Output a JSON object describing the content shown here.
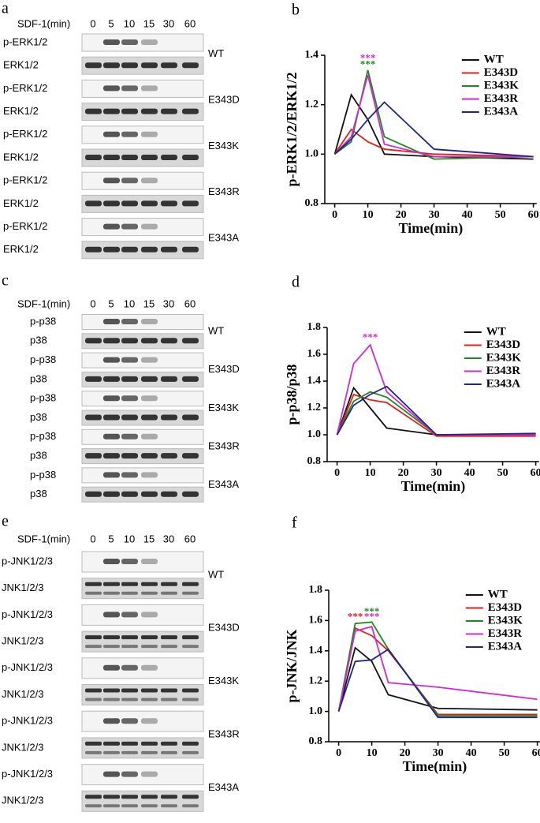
{
  "blots": [
    {
      "panel_label": "a",
      "header": "SDF-1(min)",
      "times": [
        "0",
        "5",
        "10",
        "15",
        "30",
        "60"
      ],
      "groups": [
        {
          "name": "WT",
          "rows": [
            "p-ERK1/2",
            "ERK1/2"
          ]
        },
        {
          "name": "E343D",
          "rows": [
            "p-ERK1/2",
            "ERK1/2"
          ]
        },
        {
          "name": "E343K",
          "rows": [
            "p-ERK1/2",
            "ERK1/2"
          ]
        },
        {
          "name": "E343R",
          "rows": [
            "p-ERK1/2",
            "ERK1/2"
          ]
        },
        {
          "name": "E343A",
          "rows": [
            "p-ERK1/2",
            "ERK1/2"
          ]
        }
      ]
    },
    {
      "panel_label": "c",
      "header": "SDF-1(min)",
      "times": [
        "0",
        "5",
        "10",
        "15",
        "30",
        "60"
      ],
      "groups": [
        {
          "name": "WT",
          "rows": [
            "p-p38",
            "p38"
          ]
        },
        {
          "name": "E343D",
          "rows": [
            "p-p38",
            "p38"
          ]
        },
        {
          "name": "E343K",
          "rows": [
            "p-p38",
            "p38"
          ]
        },
        {
          "name": "E343R",
          "rows": [
            "p-p38",
            "p38"
          ]
        },
        {
          "name": "E343A",
          "rows": [
            "p-p38",
            "p38"
          ]
        }
      ]
    },
    {
      "panel_label": "e",
      "header": "SDF-1(min)",
      "times": [
        "0",
        "5",
        "10",
        "15",
        "30",
        "60"
      ],
      "groups": [
        {
          "name": "WT",
          "rows": [
            "p-JNK1/2/3",
            "JNK1/2/3"
          ]
        },
        {
          "name": "E343D",
          "rows": [
            "p-JNK1/2/3",
            "JNK1/2/3"
          ]
        },
        {
          "name": "E343K",
          "rows": [
            "p-JNK1/2/3",
            "JNK1/2/3"
          ]
        },
        {
          "name": "E343R",
          "rows": [
            "p-JNK1/2/3",
            "JNK1/2/3"
          ]
        },
        {
          "name": "E343A",
          "rows": [
            "p-JNK1/2/3",
            "JNK1/2/3"
          ]
        }
      ]
    }
  ],
  "chart_data": [
    {
      "type": "line",
      "panel_label": "b",
      "y_label": "p-ERK1/2/ERK1/2",
      "x_label": "Time(min)",
      "x": [
        0,
        5,
        10,
        15,
        30,
        60
      ],
      "xlim": [
        -3,
        61
      ],
      "xticks": [
        0,
        10,
        20,
        30,
        40,
        50,
        60
      ],
      "ylim": [
        0.8,
        1.4
      ],
      "yticks": [
        {
          "value": 0.8,
          "label": "0.8"
        },
        {
          "value": 1.0,
          "label": "1.0"
        },
        {
          "value": 1.2,
          "label": "1.2"
        },
        {
          "value": 1.4,
          "label": "1.4"
        }
      ],
      "legend": "upper right",
      "series": [
        {
          "name": "WT",
          "color": "#111111",
          "values": [
            1.0,
            1.24,
            1.14,
            1.0,
            0.99,
            0.98
          ]
        },
        {
          "name": "E343D",
          "color": "#e0201c",
          "values": [
            1.0,
            1.1,
            1.05,
            1.02,
            1.0,
            0.99
          ]
        },
        {
          "name": "E343K",
          "color": "#1e8a1e",
          "values": [
            1.0,
            1.05,
            1.34,
            1.07,
            0.98,
            0.99
          ]
        },
        {
          "name": "E343R",
          "color": "#d02ad0",
          "values": [
            1.0,
            1.07,
            1.32,
            1.04,
            0.99,
            0.99
          ]
        },
        {
          "name": "E343A",
          "color": "#1f2590",
          "values": [
            1.0,
            1.06,
            1.14,
            1.21,
            1.02,
            0.99
          ]
        }
      ],
      "annotations": [
        {
          "text": "***",
          "x": 10,
          "y": 1.385,
          "color": "#d02ad0"
        },
        {
          "text": "***",
          "x": 10,
          "y": 1.36,
          "color": "#1e8a1e"
        }
      ]
    },
    {
      "type": "line",
      "panel_label": "d",
      "y_label": "p-p38/p38",
      "x_label": "Time(min)",
      "x": [
        0,
        5,
        10,
        15,
        30,
        60
      ],
      "xlim": [
        -3,
        61
      ],
      "xticks": [
        0,
        10,
        20,
        30,
        40,
        50,
        60
      ],
      "ylim": [
        0.8,
        1.8
      ],
      "yticks": [
        {
          "value": 0.8,
          "label": "0.8"
        },
        {
          "value": 1.0,
          "label": "1.0"
        },
        {
          "value": 1.2,
          "label": "1.2"
        },
        {
          "value": 1.4,
          "label": "1.4"
        },
        {
          "value": 1.6,
          "label": "1.6"
        },
        {
          "value": 1.8,
          "label": "1.8"
        }
      ],
      "legend": "upper right",
      "series": [
        {
          "name": "WT",
          "color": "#111111",
          "values": [
            1.0,
            1.35,
            1.2,
            1.05,
            1.0,
            1.0
          ]
        },
        {
          "name": "E343D",
          "color": "#e0201c",
          "values": [
            1.0,
            1.3,
            1.26,
            1.24,
            0.99,
            0.99
          ]
        },
        {
          "name": "E343K",
          "color": "#1e8a1e",
          "values": [
            1.0,
            1.25,
            1.32,
            1.28,
            1.0,
            1.0
          ]
        },
        {
          "name": "E343R",
          "color": "#d02ad0",
          "values": [
            1.0,
            1.53,
            1.67,
            1.32,
            1.0,
            1.0
          ]
        },
        {
          "name": "E343A",
          "color": "#1f2590",
          "values": [
            1.0,
            1.22,
            1.3,
            1.36,
            1.0,
            1.01
          ]
        }
      ],
      "annotations": [
        {
          "text": "***",
          "x": 10,
          "y": 1.72,
          "color": "#d02ad0"
        }
      ]
    },
    {
      "type": "line",
      "panel_label": "f",
      "y_label": "p-JNK/JNK",
      "x_label": "Time(min)",
      "x": [
        0,
        5,
        10,
        15,
        30,
        60
      ],
      "xlim": [
        -3,
        61
      ],
      "xticks": [
        0,
        10,
        20,
        30,
        40,
        50,
        60
      ],
      "ylim": [
        0.8,
        1.8
      ],
      "yticks": [
        {
          "value": 0.8,
          "label": "0.8"
        },
        {
          "value": 1.0,
          "label": "1.0"
        },
        {
          "value": 1.2,
          "label": "1.2"
        },
        {
          "value": 1.4,
          "label": "1.4"
        },
        {
          "value": 1.6,
          "label": "1.6"
        },
        {
          "value": 1.8,
          "label": "1.8"
        }
      ],
      "legend": "upper right",
      "series": [
        {
          "name": "WT",
          "color": "#111111",
          "values": [
            1.0,
            1.42,
            1.33,
            1.11,
            1.02,
            1.01
          ]
        },
        {
          "name": "E343D",
          "color": "#e0201c",
          "values": [
            1.0,
            1.55,
            1.5,
            1.4,
            0.98,
            0.98
          ]
        },
        {
          "name": "E343K",
          "color": "#1e8a1e",
          "values": [
            1.0,
            1.58,
            1.59,
            1.41,
            0.97,
            0.97
          ]
        },
        {
          "name": "E343R",
          "color": "#d02ad0",
          "values": [
            1.0,
            1.53,
            1.56,
            1.19,
            1.16,
            1.08
          ]
        },
        {
          "name": "E343A",
          "color": "#1f2590",
          "values": [
            1.0,
            1.33,
            1.34,
            1.41,
            0.96,
            0.96
          ]
        }
      ],
      "annotations": [
        {
          "text": "***",
          "x": 5,
          "y": 1.62,
          "color": "#e0201c"
        },
        {
          "text": "***",
          "x": 10,
          "y": 1.62,
          "color": "#d02ad0"
        },
        {
          "text": "***",
          "x": 10,
          "y": 1.655,
          "color": "#1e8a1e"
        }
      ]
    }
  ]
}
